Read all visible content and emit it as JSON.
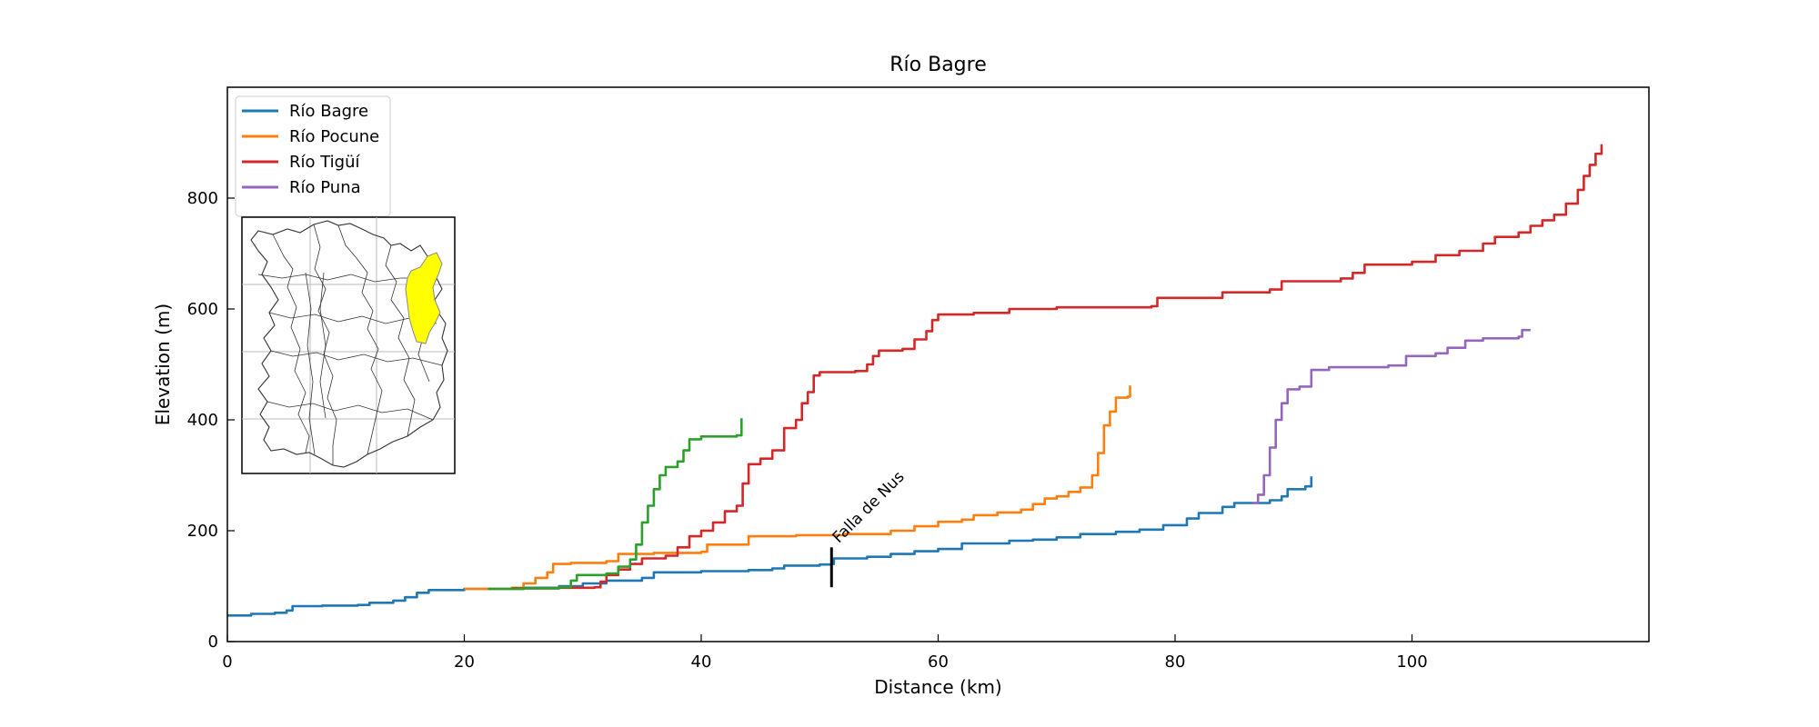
{
  "chart_data": {
    "type": "line",
    "title": "Río Bagre",
    "xlabel": "Distance (km)",
    "ylabel": "Elevation (m)",
    "xlim": [
      0,
      120
    ],
    "ylim": [
      0,
      1000
    ],
    "x_ticks": [
      0,
      20,
      40,
      60,
      80,
      100
    ],
    "y_ticks": [
      0,
      200,
      400,
      600,
      800
    ],
    "grid": false,
    "legend_position": "top-left",
    "annotation": {
      "text": "Falla de Nus",
      "x": 51,
      "y_range": [
        98,
        170
      ]
    },
    "inset": {
      "description": "watershed-outline-map",
      "highlight_color": "#ffff00"
    },
    "series": [
      {
        "name": "Río Bagre",
        "color": "#1f77b4",
        "points": [
          [
            0,
            47
          ],
          [
            2,
            50
          ],
          [
            4,
            52
          ],
          [
            5,
            56
          ],
          [
            5.5,
            64
          ],
          [
            8,
            65
          ],
          [
            11,
            66
          ],
          [
            12,
            70
          ],
          [
            14,
            74
          ],
          [
            15,
            80
          ],
          [
            16,
            88
          ],
          [
            17,
            93
          ],
          [
            20,
            95
          ],
          [
            25,
            97
          ],
          [
            28,
            100
          ],
          [
            30,
            105
          ],
          [
            32,
            110
          ],
          [
            35,
            115
          ],
          [
            36,
            125
          ],
          [
            40,
            127
          ],
          [
            44,
            129
          ],
          [
            46,
            132
          ],
          [
            47,
            137
          ],
          [
            50,
            139
          ],
          [
            51,
            140
          ],
          [
            51.2,
            150
          ],
          [
            54,
            153
          ],
          [
            56,
            158
          ],
          [
            58,
            163
          ],
          [
            60,
            167
          ],
          [
            62,
            177
          ],
          [
            66,
            182
          ],
          [
            68,
            184
          ],
          [
            70,
            188
          ],
          [
            72,
            194
          ],
          [
            75,
            198
          ],
          [
            77,
            202
          ],
          [
            79,
            210
          ],
          [
            81,
            222
          ],
          [
            82,
            232
          ],
          [
            84,
            243
          ],
          [
            85,
            250
          ],
          [
            87,
            250
          ],
          [
            88,
            255
          ],
          [
            89,
            262
          ],
          [
            89.5,
            275
          ],
          [
            91,
            280
          ],
          [
            91.5,
            298
          ]
        ]
      },
      {
        "name": "Río Pocune",
        "color": "#ff7f0e",
        "points": [
          [
            20,
            95
          ],
          [
            24,
            97
          ],
          [
            25,
            105
          ],
          [
            26,
            115
          ],
          [
            27,
            125
          ],
          [
            27.5,
            140
          ],
          [
            29,
            142
          ],
          [
            32,
            145
          ],
          [
            33,
            158
          ],
          [
            36,
            160
          ],
          [
            40,
            162
          ],
          [
            40.5,
            175
          ],
          [
            43,
            175
          ],
          [
            44,
            190
          ],
          [
            48,
            192
          ],
          [
            52,
            194
          ],
          [
            56,
            200
          ],
          [
            58,
            208
          ],
          [
            60,
            216
          ],
          [
            62,
            220
          ],
          [
            63,
            228
          ],
          [
            65,
            233
          ],
          [
            67,
            238
          ],
          [
            68,
            248
          ],
          [
            69,
            258
          ],
          [
            70,
            262
          ],
          [
            71,
            270
          ],
          [
            72,
            278
          ],
          [
            73,
            300
          ],
          [
            73.5,
            340
          ],
          [
            74,
            390
          ],
          [
            74.5,
            415
          ],
          [
            75,
            440
          ],
          [
            76,
            442
          ],
          [
            76.2,
            462
          ]
        ]
      },
      {
        "name": "Río Tigüí",
        "color": "#d62728",
        "points": [
          [
            24,
            96
          ],
          [
            28,
            97
          ],
          [
            31,
            98
          ],
          [
            31.5,
            108
          ],
          [
            32,
            120
          ],
          [
            33,
            130
          ],
          [
            34,
            140
          ],
          [
            35,
            150
          ],
          [
            37,
            155
          ],
          [
            38,
            170
          ],
          [
            39,
            190
          ],
          [
            40,
            200
          ],
          [
            41,
            215
          ],
          [
            42,
            235
          ],
          [
            43,
            245
          ],
          [
            43.5,
            285
          ],
          [
            44,
            320
          ],
          [
            45,
            330
          ],
          [
            46,
            345
          ],
          [
            47,
            385
          ],
          [
            48,
            400
          ],
          [
            48.5,
            430
          ],
          [
            49,
            450
          ],
          [
            49.5,
            480
          ],
          [
            50,
            486
          ],
          [
            53,
            488
          ],
          [
            54,
            500
          ],
          [
            54.5,
            515
          ],
          [
            55,
            525
          ],
          [
            57,
            528
          ],
          [
            58,
            545
          ],
          [
            59,
            560
          ],
          [
            59.5,
            580
          ],
          [
            60,
            590
          ],
          [
            63,
            593
          ],
          [
            66,
            600
          ],
          [
            70,
            603
          ],
          [
            78,
            605
          ],
          [
            78.5,
            620
          ],
          [
            84,
            630
          ],
          [
            88,
            635
          ],
          [
            89,
            650
          ],
          [
            94,
            655
          ],
          [
            95,
            665
          ],
          [
            96,
            680
          ],
          [
            100,
            685
          ],
          [
            102,
            697
          ],
          [
            104,
            705
          ],
          [
            106,
            718
          ],
          [
            107,
            730
          ],
          [
            109,
            738
          ],
          [
            110,
            750
          ],
          [
            111,
            760
          ],
          [
            112,
            770
          ],
          [
            113,
            790
          ],
          [
            114,
            815
          ],
          [
            114.5,
            840
          ],
          [
            115,
            860
          ],
          [
            115.5,
            880
          ],
          [
            116,
            897
          ]
        ]
      },
      {
        "name": "Río Puna",
        "color": "#9467bd",
        "points": [
          [
            86.5,
            250
          ],
          [
            87,
            265
          ],
          [
            87.5,
            300
          ],
          [
            88,
            350
          ],
          [
            88.5,
            400
          ],
          [
            89,
            430
          ],
          [
            89.5,
            455
          ],
          [
            90.5,
            460
          ],
          [
            91.5,
            490
          ],
          [
            93,
            495
          ],
          [
            98,
            498
          ],
          [
            99.5,
            515
          ],
          [
            102,
            520
          ],
          [
            103,
            530
          ],
          [
            104.5,
            543
          ],
          [
            106,
            547
          ],
          [
            109,
            550
          ],
          [
            109.3,
            562
          ],
          [
            110,
            562
          ]
        ]
      },
      {
        "color": "#2ca02c",
        "points": [
          [
            22,
            95
          ],
          [
            25,
            96
          ],
          [
            28,
            98
          ],
          [
            29,
            110
          ],
          [
            29.5,
            120
          ],
          [
            32,
            123
          ],
          [
            33,
            135
          ],
          [
            34,
            148
          ],
          [
            34.5,
            175
          ],
          [
            35,
            215
          ],
          [
            35.5,
            245
          ],
          [
            36,
            275
          ],
          [
            36.5,
            300
          ],
          [
            37,
            315
          ],
          [
            38,
            325
          ],
          [
            38.5,
            345
          ],
          [
            39,
            365
          ],
          [
            40,
            370
          ],
          [
            43,
            372
          ],
          [
            43.4,
            403
          ]
        ]
      }
    ]
  }
}
